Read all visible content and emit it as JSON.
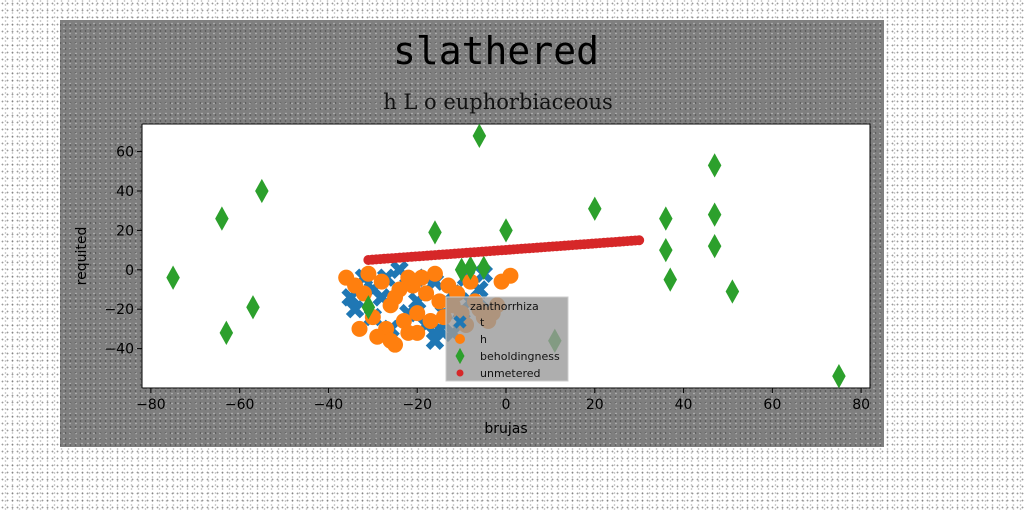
{
  "chart_data": {
    "type": "scatter",
    "title": "slathered",
    "subtitle": "h L o euphorbiaceous",
    "xlabel": "brujas",
    "ylabel": "requited",
    "xlim": [
      -82,
      82
    ],
    "ylim": [
      -60,
      74
    ],
    "xticks": [
      -80,
      -60,
      -40,
      -20,
      0,
      20,
      40,
      60,
      80
    ],
    "yticks": [
      -40,
      -20,
      0,
      20,
      40,
      60
    ],
    "grid": false,
    "legend": {
      "title": "zanthorrhiza",
      "placement": "lower-center"
    },
    "series": [
      {
        "name": "t",
        "marker": "x",
        "color": "#1f77b4",
        "points": [
          [
            -34,
            -20
          ],
          [
            -30,
            -24
          ],
          [
            -28,
            -14
          ],
          [
            -26,
            -30
          ],
          [
            -24,
            0
          ],
          [
            -22,
            -22
          ],
          [
            -20,
            -16
          ],
          [
            -18,
            -28
          ],
          [
            -16,
            -6
          ],
          [
            -14,
            -22
          ],
          [
            -12,
            -12
          ],
          [
            -10,
            -26
          ],
          [
            -9,
            -4
          ],
          [
            -8,
            -16
          ],
          [
            -6,
            -10
          ],
          [
            -5,
            -2
          ],
          [
            -4,
            -20
          ],
          [
            -30,
            -10
          ],
          [
            -32,
            -4
          ],
          [
            -22,
            -8
          ],
          [
            -18,
            -4
          ],
          [
            -15,
            -30
          ],
          [
            -16,
            -36
          ],
          [
            -12,
            -32
          ],
          [
            -35,
            -14
          ],
          [
            -27,
            -4
          ]
        ]
      },
      {
        "name": "h",
        "marker": "o",
        "color": "#ff7f0e",
        "points": [
          [
            -36,
            -4
          ],
          [
            -34,
            -8
          ],
          [
            -32,
            -12
          ],
          [
            -31,
            -2
          ],
          [
            -30,
            -24
          ],
          [
            -28,
            -6
          ],
          [
            -27,
            -30
          ],
          [
            -26,
            -18
          ],
          [
            -25,
            -14
          ],
          [
            -24,
            -10
          ],
          [
            -23,
            -26
          ],
          [
            -22,
            -32
          ],
          [
            -21,
            -8
          ],
          [
            -20,
            -22
          ],
          [
            -19,
            -4
          ],
          [
            -18,
            -12
          ],
          [
            -17,
            -26
          ],
          [
            -16,
            -2
          ],
          [
            -15,
            -16
          ],
          [
            -14,
            -24
          ],
          [
            -13,
            -8
          ],
          [
            -12,
            -18
          ],
          [
            -11,
            -12
          ],
          [
            -10,
            -22
          ],
          [
            -9,
            -28
          ],
          [
            -8,
            -6
          ],
          [
            -7,
            -16
          ],
          [
            -6,
            -20
          ],
          [
            -5,
            -24
          ],
          [
            -4,
            -26
          ],
          [
            -3,
            -22
          ],
          [
            -2,
            -18
          ],
          [
            -1,
            -6
          ],
          [
            1,
            -3
          ],
          [
            -29,
            -34
          ],
          [
            -25,
            -38
          ],
          [
            -20,
            -32
          ],
          [
            -33,
            -30
          ],
          [
            -26,
            -36
          ],
          [
            -22,
            -4
          ]
        ]
      },
      {
        "name": "beholdingness",
        "marker": "d",
        "color": "#2ca02c",
        "points": [
          [
            -75,
            -4
          ],
          [
            -64,
            26
          ],
          [
            -63,
            -32
          ],
          [
            -57,
            -19
          ],
          [
            -55,
            40
          ],
          [
            -31,
            -19
          ],
          [
            -16,
            19
          ],
          [
            -10,
            0
          ],
          [
            -8,
            1
          ],
          [
            -6,
            68
          ],
          [
            -5,
            1
          ],
          [
            0,
            20
          ],
          [
            11,
            -36
          ],
          [
            20,
            31
          ],
          [
            36,
            26
          ],
          [
            36,
            10
          ],
          [
            37,
            -5
          ],
          [
            47,
            53
          ],
          [
            47,
            28
          ],
          [
            47,
            12
          ],
          [
            51,
            -11
          ],
          [
            75,
            -54
          ]
        ]
      },
      {
        "name": "unmetered",
        "marker": "o",
        "color": "#d62728",
        "line_from": [
          -31,
          5
        ],
        "line_to": [
          30,
          15
        ],
        "n_points": 70
      }
    ]
  }
}
